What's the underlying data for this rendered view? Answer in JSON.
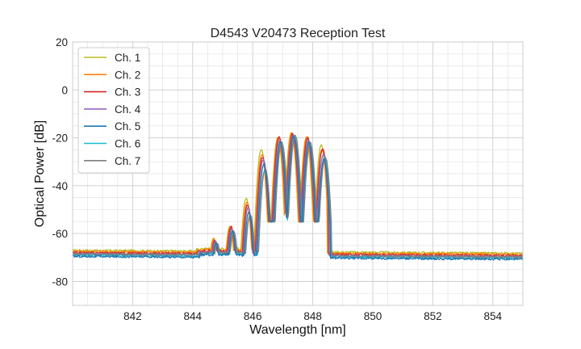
{
  "chart_data": {
    "type": "line",
    "title": "D4543 V20473 Reception Test",
    "xlabel": "Wavelength [nm]",
    "ylabel": "Optical Power [dB]",
    "xlim": [
      840,
      855
    ],
    "ylim": [
      -90,
      20
    ],
    "x_ticks": [
      842,
      844,
      846,
      848,
      850,
      852,
      854
    ],
    "y_ticks": [
      -80,
      -60,
      -40,
      -20,
      0,
      20
    ],
    "x_minor_step": 0.5,
    "y_minor_step": 5,
    "grid": true,
    "legend_position": "top-left",
    "peak_x": [
      844.75,
      845.3,
      845.85,
      846.35,
      846.9,
      847.35,
      847.85,
      848.35
    ],
    "series": [
      {
        "name": "Ch. 1",
        "color": "#bcbd22",
        "baseline": -67,
        "peaks": [
          -62,
          -57,
          -45,
          -25,
          -20,
          -18,
          -20,
          -23
        ]
      },
      {
        "name": "Ch. 2",
        "color": "#ff7f0e",
        "baseline": -67.5,
        "peaks": [
          -62,
          -57,
          -47,
          -27,
          -20,
          -18,
          -19.5,
          -25
        ]
      },
      {
        "name": "Ch. 3",
        "color": "#d62728",
        "baseline": -68,
        "peaks": [
          -63,
          -57,
          -48,
          -28,
          -19.5,
          -18.5,
          -20,
          -24.5
        ]
      },
      {
        "name": "Ch. 4",
        "color": "#9467bd",
        "baseline": -68.5,
        "peaks": [
          -63,
          -58,
          -49,
          -29,
          -21,
          -19,
          -21,
          -27
        ]
      },
      {
        "name": "Ch. 5",
        "color": "#1f77b4",
        "baseline": -69.5,
        "peaks": [
          -64,
          -59,
          -51,
          -31,
          -22,
          -19,
          -22,
          -29
        ]
      },
      {
        "name": "Ch. 6",
        "color": "#17becf",
        "baseline": -69,
        "peaks": [
          -64,
          -60,
          -53,
          -34,
          -23,
          -20,
          -23,
          -28
        ]
      },
      {
        "name": "Ch. 7",
        "color": "#7f7f7f",
        "baseline": -68.5,
        "peaks": [
          -64,
          -59,
          -52,
          -33,
          -22,
          -19,
          -22,
          -28
        ]
      }
    ]
  }
}
